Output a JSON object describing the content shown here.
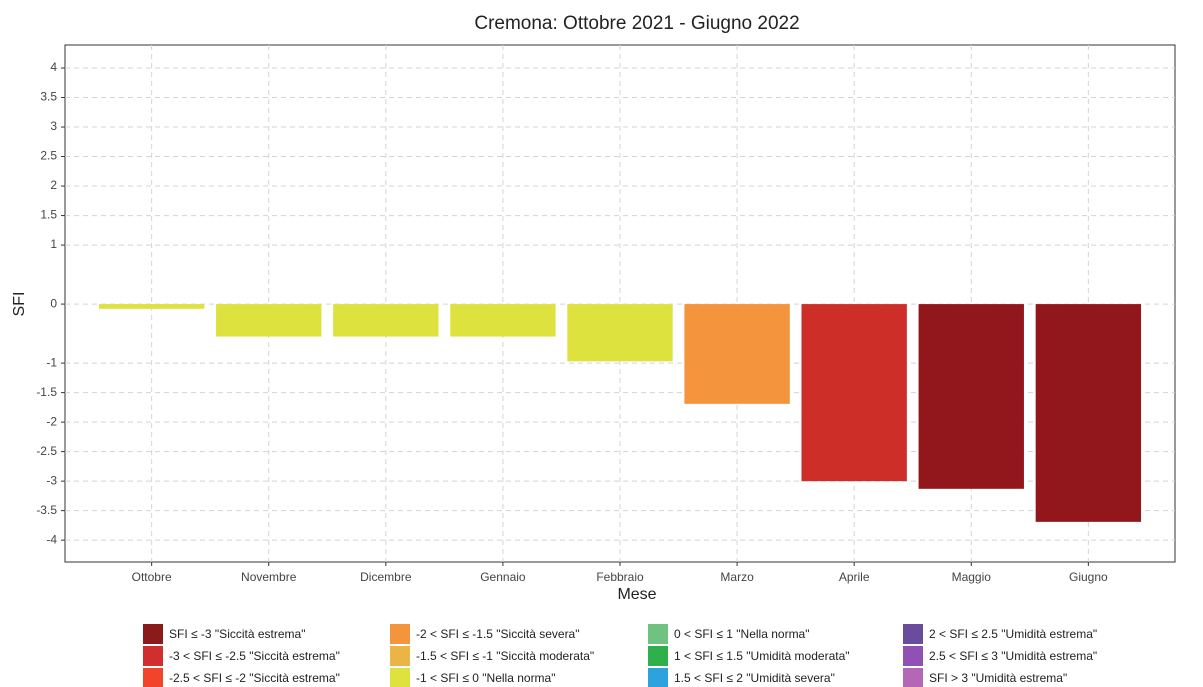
{
  "chart_data": {
    "type": "bar",
    "title": "Cremona: Ottobre 2021 - Giugno 2022",
    "x_label": "Mese",
    "y_label": "SFI",
    "categories": [
      "Ottobre",
      "Novembre",
      "Dicembre",
      "Gennaio",
      "Febbraio",
      "Marzo",
      "Aprile",
      "Maggio",
      "Giugno"
    ],
    "values": [
      -0.08,
      -0.55,
      -0.55,
      -0.55,
      -0.97,
      -1.69,
      -3.0,
      -3.13,
      -3.69
    ],
    "colors": [
      "#dde23f",
      "#dde23f",
      "#dde23f",
      "#dde23f",
      "#dde23f",
      "#f4953e",
      "#cd2e28",
      "#92171c",
      "#92171c"
    ],
    "ylim": [
      -4.37,
      4.39
    ],
    "yticks": [
      -4,
      -3.5,
      -3,
      -2.5,
      -2,
      -1.5,
      -1,
      0,
      1,
      1.5,
      2,
      2.5,
      3,
      3.5,
      4
    ],
    "grid": true,
    "legend": [
      {
        "label": "SFI ≤ -3 \"Siccità estrema\"",
        "color": "#8b1a1a"
      },
      {
        "label": "-3 < SFI ≤ -2.5 \"Siccità estrema\"",
        "color": "#d0302d"
      },
      {
        "label": "-2.5 < SFI ≤ -2 \"Siccità estrema\"",
        "color": "#f2442a"
      },
      {
        "label": "-2 < SFI ≤ -1.5 \"Siccità severa\"",
        "color": "#f4953e"
      },
      {
        "label": "-1.5 < SFI ≤ -1 \"Siccità moderata\"",
        "color": "#ebb445"
      },
      {
        "label": "-1 < SFI ≤ 0 \"Nella norma\"",
        "color": "#dde23f"
      },
      {
        "label": "0 < SFI ≤ 1 \"Nella norma\"",
        "color": "#6fc27f"
      },
      {
        "label": "1 < SFI ≤ 1.5 \"Umidità moderata\"",
        "color": "#2eb04a"
      },
      {
        "label": "1.5 < SFI ≤ 2 \"Umidità severa\"",
        "color": "#2ea2dc"
      },
      {
        "label": "2 < SFI ≤ 2.5 \"Umidità estrema\"",
        "color": "#6a4c9c"
      },
      {
        "label": "2.5 < SFI ≤ 3 \"Umidità estrema\"",
        "color": "#9150b4"
      },
      {
        "label": "SFI > 3 \"Umidità estrema\"",
        "color": "#b566b6"
      }
    ]
  }
}
